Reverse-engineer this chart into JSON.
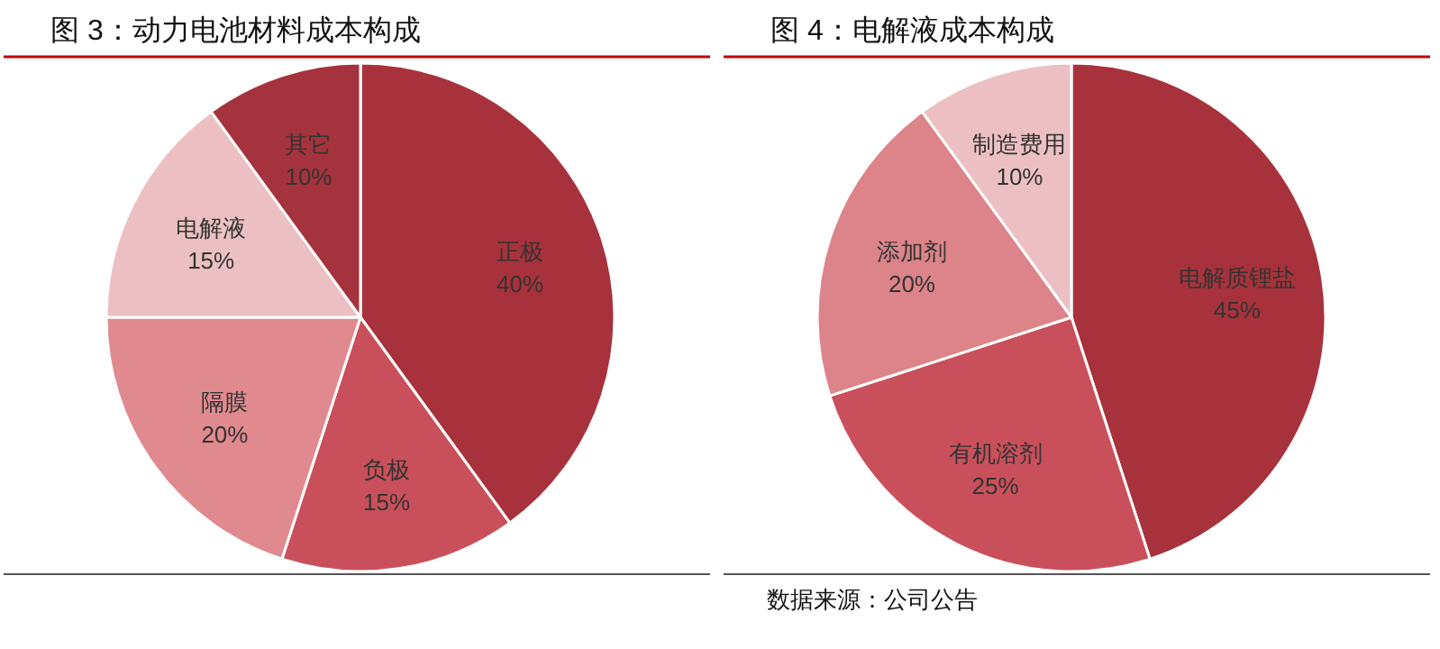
{
  "chart_data": [
    {
      "type": "pie",
      "title": "图 3：动力电池材料成本构成",
      "categories": [
        "正极",
        "负极",
        "隔膜",
        "电解液",
        "其它"
      ],
      "values": [
        40,
        15,
        20,
        15,
        10
      ],
      "colors": [
        "#a8323c",
        "#c9505a",
        "#e08a8f",
        "#ecc0c2",
        "#a5333d"
      ],
      "value_labels": [
        "40%",
        "15%",
        "20%",
        "15%",
        "10%"
      ]
    },
    {
      "type": "pie",
      "title": "图 4：电解液成本构成",
      "categories": [
        "电解质锂盐",
        "有机溶剂",
        "添加剂",
        "制造费用"
      ],
      "values": [
        45,
        25,
        20,
        10
      ],
      "colors": [
        "#a8323c",
        "#c9505a",
        "#dc8489",
        "#ecc0c2"
      ],
      "value_labels": [
        "45%",
        "25%",
        "20%",
        "10%"
      ],
      "annotations": [
        "数据来源：公司公告"
      ]
    }
  ]
}
